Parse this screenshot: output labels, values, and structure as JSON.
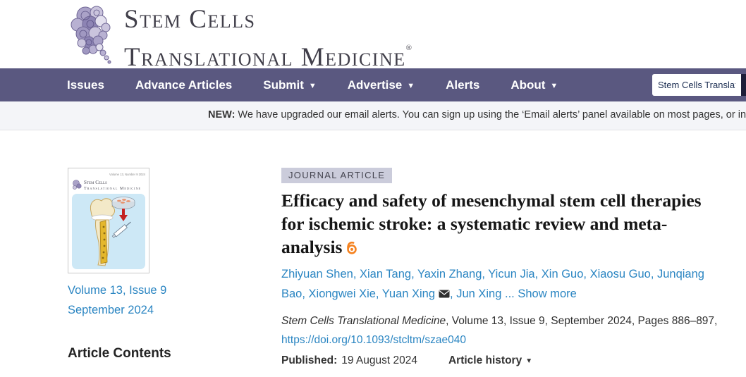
{
  "brand": {
    "name_line1": "Stem Cells",
    "name_line2": "Translational Medicine",
    "trademark": "®"
  },
  "nav": {
    "items": [
      {
        "label": "Issues",
        "dropdown": false
      },
      {
        "label": "Advance Articles",
        "dropdown": false
      },
      {
        "label": "Submit",
        "dropdown": true
      },
      {
        "label": "Advertise",
        "dropdown": true
      },
      {
        "label": "Alerts",
        "dropdown": false
      },
      {
        "label": "About",
        "dropdown": true
      }
    ],
    "dropdown_caret": "▼",
    "search_value": "Stem Cells Translational M"
  },
  "banner": {
    "label": "NEW:",
    "message": "We have upgraded our email alerts. You can sign up using the ‘Email alerts’ panel available on most pages, or in your Oxford Academic personal account."
  },
  "issue": {
    "cover_issue_note": "Volume 13, Number 9 2024",
    "cover_journal_line1": "Stem Cells",
    "cover_journal_line2": "Translational Medicine",
    "volume_issue": "Volume 13, Issue 9",
    "issue_date": "September 2024",
    "contents_heading": "Article Contents"
  },
  "article": {
    "badge": "JOURNAL ARTICLE",
    "title": "Efficacy and safety of mesenchymal stem cell therapies for ischemic stroke: a systematic review and meta-analysis",
    "authors": [
      "Zhiyuan Shen",
      "Xian Tang",
      "Yaxin Zhang",
      "Yicun Jia",
      "Xin Guo",
      "Xiaosu Guo",
      "Junqiang Bao",
      "Xiongwei Xie",
      "Yuan Xing",
      "Jun Xing"
    ],
    "corresponding_author_index": 8,
    "ellipsis": "...",
    "show_more": "Show more",
    "citation": {
      "journal": "Stem Cells Translational Medicine",
      "rest": ", Volume 13, Issue 9, September 2024, Pages 886–897, ",
      "doi": "https://doi.org/10.1093/stcltm/szae040"
    },
    "published_label": "Published:",
    "published_date": "19 August 2024",
    "history_label": "Article history",
    "history_caret": "▼"
  },
  "colors": {
    "nav_bg": "#5a5880",
    "link_blue": "#2a85c2",
    "open_access_orange": "#f58220",
    "badge_bg": "#cbccdb",
    "banner_bg": "#f4f5f8"
  }
}
